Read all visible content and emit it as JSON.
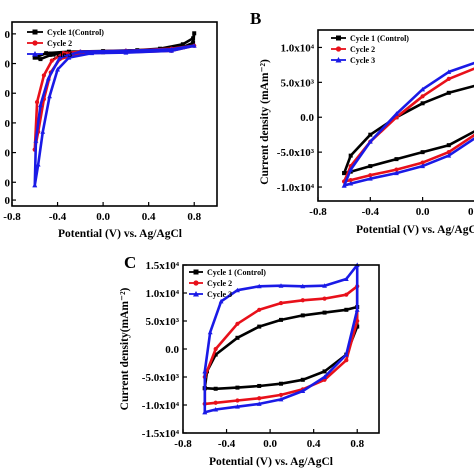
{
  "chart_data": [
    {
      "panel": "A",
      "type": "line",
      "panel_label": "",
      "xlabel": "Potential (V) vs. Ag/AgCl",
      "ylabel": "",
      "xlim": [
        -0.8,
        1.0
      ],
      "ylim": [
        -5.2,
        1.0
      ],
      "x_ticks": [
        "-0.8",
        "-0.4",
        "0.0",
        "0.4",
        "0.8"
      ],
      "y_ticks": [
        "0",
        "0",
        "0",
        "0",
        "0",
        "0",
        "0"
      ],
      "legend": [
        "Cycle 1(Control)",
        "Cycle 2",
        "Cycle 3"
      ],
      "series": [
        {
          "name": "Cycle 1(Control)",
          "color": "#000000",
          "points": [
            [
              -0.6,
              -0.2
            ],
            [
              -0.5,
              -0.05
            ],
            [
              -0.3,
              0.0
            ],
            [
              0.0,
              0.02
            ],
            [
              0.3,
              0.05
            ],
            [
              0.5,
              0.1
            ],
            [
              0.7,
              0.25
            ],
            [
              0.79,
              0.45
            ],
            [
              0.8,
              0.62
            ],
            [
              0.79,
              0.3
            ],
            [
              0.7,
              0.15
            ],
            [
              0.5,
              0.05
            ],
            [
              0.2,
              0.0
            ],
            [
              0.0,
              -0.02
            ],
            [
              -0.3,
              -0.05
            ],
            [
              -0.45,
              -0.1
            ],
            [
              -0.55,
              -0.25
            ],
            [
              -0.6,
              -0.2
            ]
          ]
        },
        {
          "name": "Cycle 2",
          "color": "#e8101a",
          "points": [
            [
              -0.6,
              -3.3
            ],
            [
              -0.58,
              -1.7
            ],
            [
              -0.52,
              -0.8
            ],
            [
              -0.45,
              -0.3
            ],
            [
              -0.35,
              -0.05
            ],
            [
              -0.2,
              0.0
            ],
            [
              0.2,
              0.03
            ],
            [
              0.6,
              0.1
            ],
            [
              0.8,
              0.2
            ],
            [
              0.6,
              0.03
            ],
            [
              0.2,
              -0.02
            ],
            [
              -0.2,
              -0.05
            ],
            [
              -0.38,
              -0.25
            ],
            [
              -0.46,
              -0.7
            ],
            [
              -0.52,
              -1.6
            ],
            [
              -0.57,
              -2.7
            ],
            [
              -0.6,
              -3.3
            ]
          ]
        },
        {
          "name": "Cycle 3",
          "color": "#1a1ae6",
          "points": [
            [
              -0.6,
              -4.5
            ],
            [
              -0.59,
              -3.0
            ],
            [
              -0.55,
              -1.8
            ],
            [
              -0.48,
              -0.9
            ],
            [
              -0.38,
              -0.2
            ],
            [
              -0.2,
              0.0
            ],
            [
              0.2,
              0.03
            ],
            [
              0.6,
              0.08
            ],
            [
              0.8,
              0.2
            ],
            [
              0.6,
              0.03
            ],
            [
              0.2,
              -0.03
            ],
            [
              -0.1,
              -0.05
            ],
            [
              -0.3,
              -0.2
            ],
            [
              -0.4,
              -0.6
            ],
            [
              -0.47,
              -1.5
            ],
            [
              -0.53,
              -2.7
            ],
            [
              -0.57,
              -3.8
            ],
            [
              -0.6,
              -4.5
            ]
          ]
        }
      ]
    },
    {
      "panel": "B",
      "type": "line",
      "panel_label": "B",
      "xlabel": "Potential (V) vs. Ag/AgCl",
      "ylabel": "Current density (mAm⁻²)",
      "xlim": [
        -0.8,
        0.5
      ],
      "ylim": [
        -12000,
        12500
      ],
      "x_ticks": [
        "-0.8",
        "-0.4",
        "0.0",
        "0.4"
      ],
      "y_ticks": [
        "1.0x10⁴",
        "5.0x10³",
        "0.0",
        "-5.0x10³",
        "-1.0x10⁴"
      ],
      "legend": [
        "Cycle 1 (Control)",
        "Cycle 2",
        "Cycle 3"
      ],
      "series": [
        {
          "name": "Cycle 1 (Control)",
          "color": "#000000",
          "points": [
            [
              -0.6,
              -8000
            ],
            [
              -0.55,
              -5500
            ],
            [
              -0.4,
              -2500
            ],
            [
              -0.2,
              0
            ],
            [
              0.0,
              2000
            ],
            [
              0.2,
              3500
            ],
            [
              0.4,
              4500
            ],
            [
              0.55,
              5000
            ],
            [
              0.55,
              1000
            ],
            [
              0.4,
              -2000
            ],
            [
              0.2,
              -4000
            ],
            [
              0.0,
              -5000
            ],
            [
              -0.2,
              -6000
            ],
            [
              -0.4,
              -7000
            ],
            [
              -0.55,
              -7800
            ],
            [
              -0.6,
              -8000
            ]
          ]
        },
        {
          "name": "Cycle 2",
          "color": "#e8101a",
          "points": [
            [
              -0.6,
              -9200
            ],
            [
              -0.55,
              -7000
            ],
            [
              -0.4,
              -3500
            ],
            [
              -0.2,
              0
            ],
            [
              0.0,
              3000
            ],
            [
              0.2,
              5500
            ],
            [
              0.4,
              7000
            ],
            [
              0.55,
              8200
            ],
            [
              0.55,
              1500
            ],
            [
              0.4,
              -2500
            ],
            [
              0.2,
              -5000
            ],
            [
              0.0,
              -6500
            ],
            [
              -0.2,
              -7500
            ],
            [
              -0.4,
              -8300
            ],
            [
              -0.55,
              -9000
            ],
            [
              -0.6,
              -9200
            ]
          ]
        },
        {
          "name": "Cycle 3",
          "color": "#1a1ae6",
          "points": [
            [
              -0.6,
              -9800
            ],
            [
              -0.55,
              -7500
            ],
            [
              -0.4,
              -3500
            ],
            [
              -0.2,
              500
            ],
            [
              0.0,
              4000
            ],
            [
              0.2,
              6500
            ],
            [
              0.4,
              7800
            ],
            [
              0.55,
              8800
            ],
            [
              0.55,
              1500
            ],
            [
              0.4,
              -3000
            ],
            [
              0.2,
              -5500
            ],
            [
              0.0,
              -7000
            ],
            [
              -0.2,
              -8000
            ],
            [
              -0.4,
              -8800
            ],
            [
              -0.55,
              -9500
            ],
            [
              -0.6,
              -9800
            ]
          ]
        }
      ]
    },
    {
      "panel": "C",
      "type": "line",
      "panel_label": "C",
      "xlabel": "Potential (V) vs. Ag/AgCl",
      "ylabel": "Current density(mAm⁻²)",
      "xlim": [
        -0.8,
        1.0
      ],
      "ylim": [
        -15000,
        15000
      ],
      "x_ticks": [
        "-0.8",
        "-0.4",
        "0.0",
        "0.4",
        "0.8"
      ],
      "y_ticks": [
        "1.5x10⁴",
        "1.0x10⁴",
        "5.0x10³",
        "0.0",
        "-5.0x10³",
        "-1.0x10⁴",
        "-1.5x10⁴"
      ],
      "legend": [
        "Cycle 1 (Control)",
        "Cycle 2",
        "Cycle 3"
      ],
      "series": [
        {
          "name": "Cycle 1 (Control)",
          "color": "#000000",
          "points": [
            [
              -0.6,
              -7000
            ],
            [
              -0.58,
              -4000
            ],
            [
              -0.5,
              -1000
            ],
            [
              -0.3,
              2000
            ],
            [
              -0.1,
              4000
            ],
            [
              0.1,
              5200
            ],
            [
              0.3,
              6000
            ],
            [
              0.5,
              6500
            ],
            [
              0.7,
              7000
            ],
            [
              0.8,
              7500
            ],
            [
              0.8,
              4000
            ],
            [
              0.7,
              -1000
            ],
            [
              0.5,
              -4000
            ],
            [
              0.3,
              -5500
            ],
            [
              0.1,
              -6200
            ],
            [
              -0.1,
              -6600
            ],
            [
              -0.3,
              -6900
            ],
            [
              -0.5,
              -7100
            ],
            [
              -0.6,
              -7000
            ]
          ]
        },
        {
          "name": "Cycle 2",
          "color": "#e8101a",
          "points": [
            [
              -0.6,
              -9800
            ],
            [
              -0.6,
              -5000
            ],
            [
              -0.5,
              0
            ],
            [
              -0.3,
              4500
            ],
            [
              -0.1,
              7000
            ],
            [
              0.1,
              8200
            ],
            [
              0.3,
              8700
            ],
            [
              0.5,
              9000
            ],
            [
              0.7,
              9700
            ],
            [
              0.8,
              11200
            ],
            [
              0.8,
              5000
            ],
            [
              0.7,
              -2000
            ],
            [
              0.5,
              -5500
            ],
            [
              0.3,
              -7200
            ],
            [
              0.1,
              -8200
            ],
            [
              -0.1,
              -8800
            ],
            [
              -0.3,
              -9200
            ],
            [
              -0.5,
              -9600
            ],
            [
              -0.6,
              -9800
            ]
          ]
        },
        {
          "name": "Cycle 3",
          "color": "#1a1ae6",
          "points": [
            [
              -0.6,
              -11300
            ],
            [
              -0.6,
              -4000
            ],
            [
              -0.55,
              3000
            ],
            [
              -0.45,
              8500
            ],
            [
              -0.3,
              10500
            ],
            [
              -0.1,
              11200
            ],
            [
              0.1,
              11300
            ],
            [
              0.3,
              11200
            ],
            [
              0.5,
              11300
            ],
            [
              0.7,
              12500
            ],
            [
              0.8,
              15000
            ],
            [
              0.8,
              7000
            ],
            [
              0.7,
              -1000
            ],
            [
              0.5,
              -5000
            ],
            [
              0.3,
              -7500
            ],
            [
              0.1,
              -9000
            ],
            [
              -0.1,
              -9800
            ],
            [
              -0.3,
              -10300
            ],
            [
              -0.5,
              -10800
            ],
            [
              -0.6,
              -11300
            ]
          ]
        }
      ]
    }
  ]
}
